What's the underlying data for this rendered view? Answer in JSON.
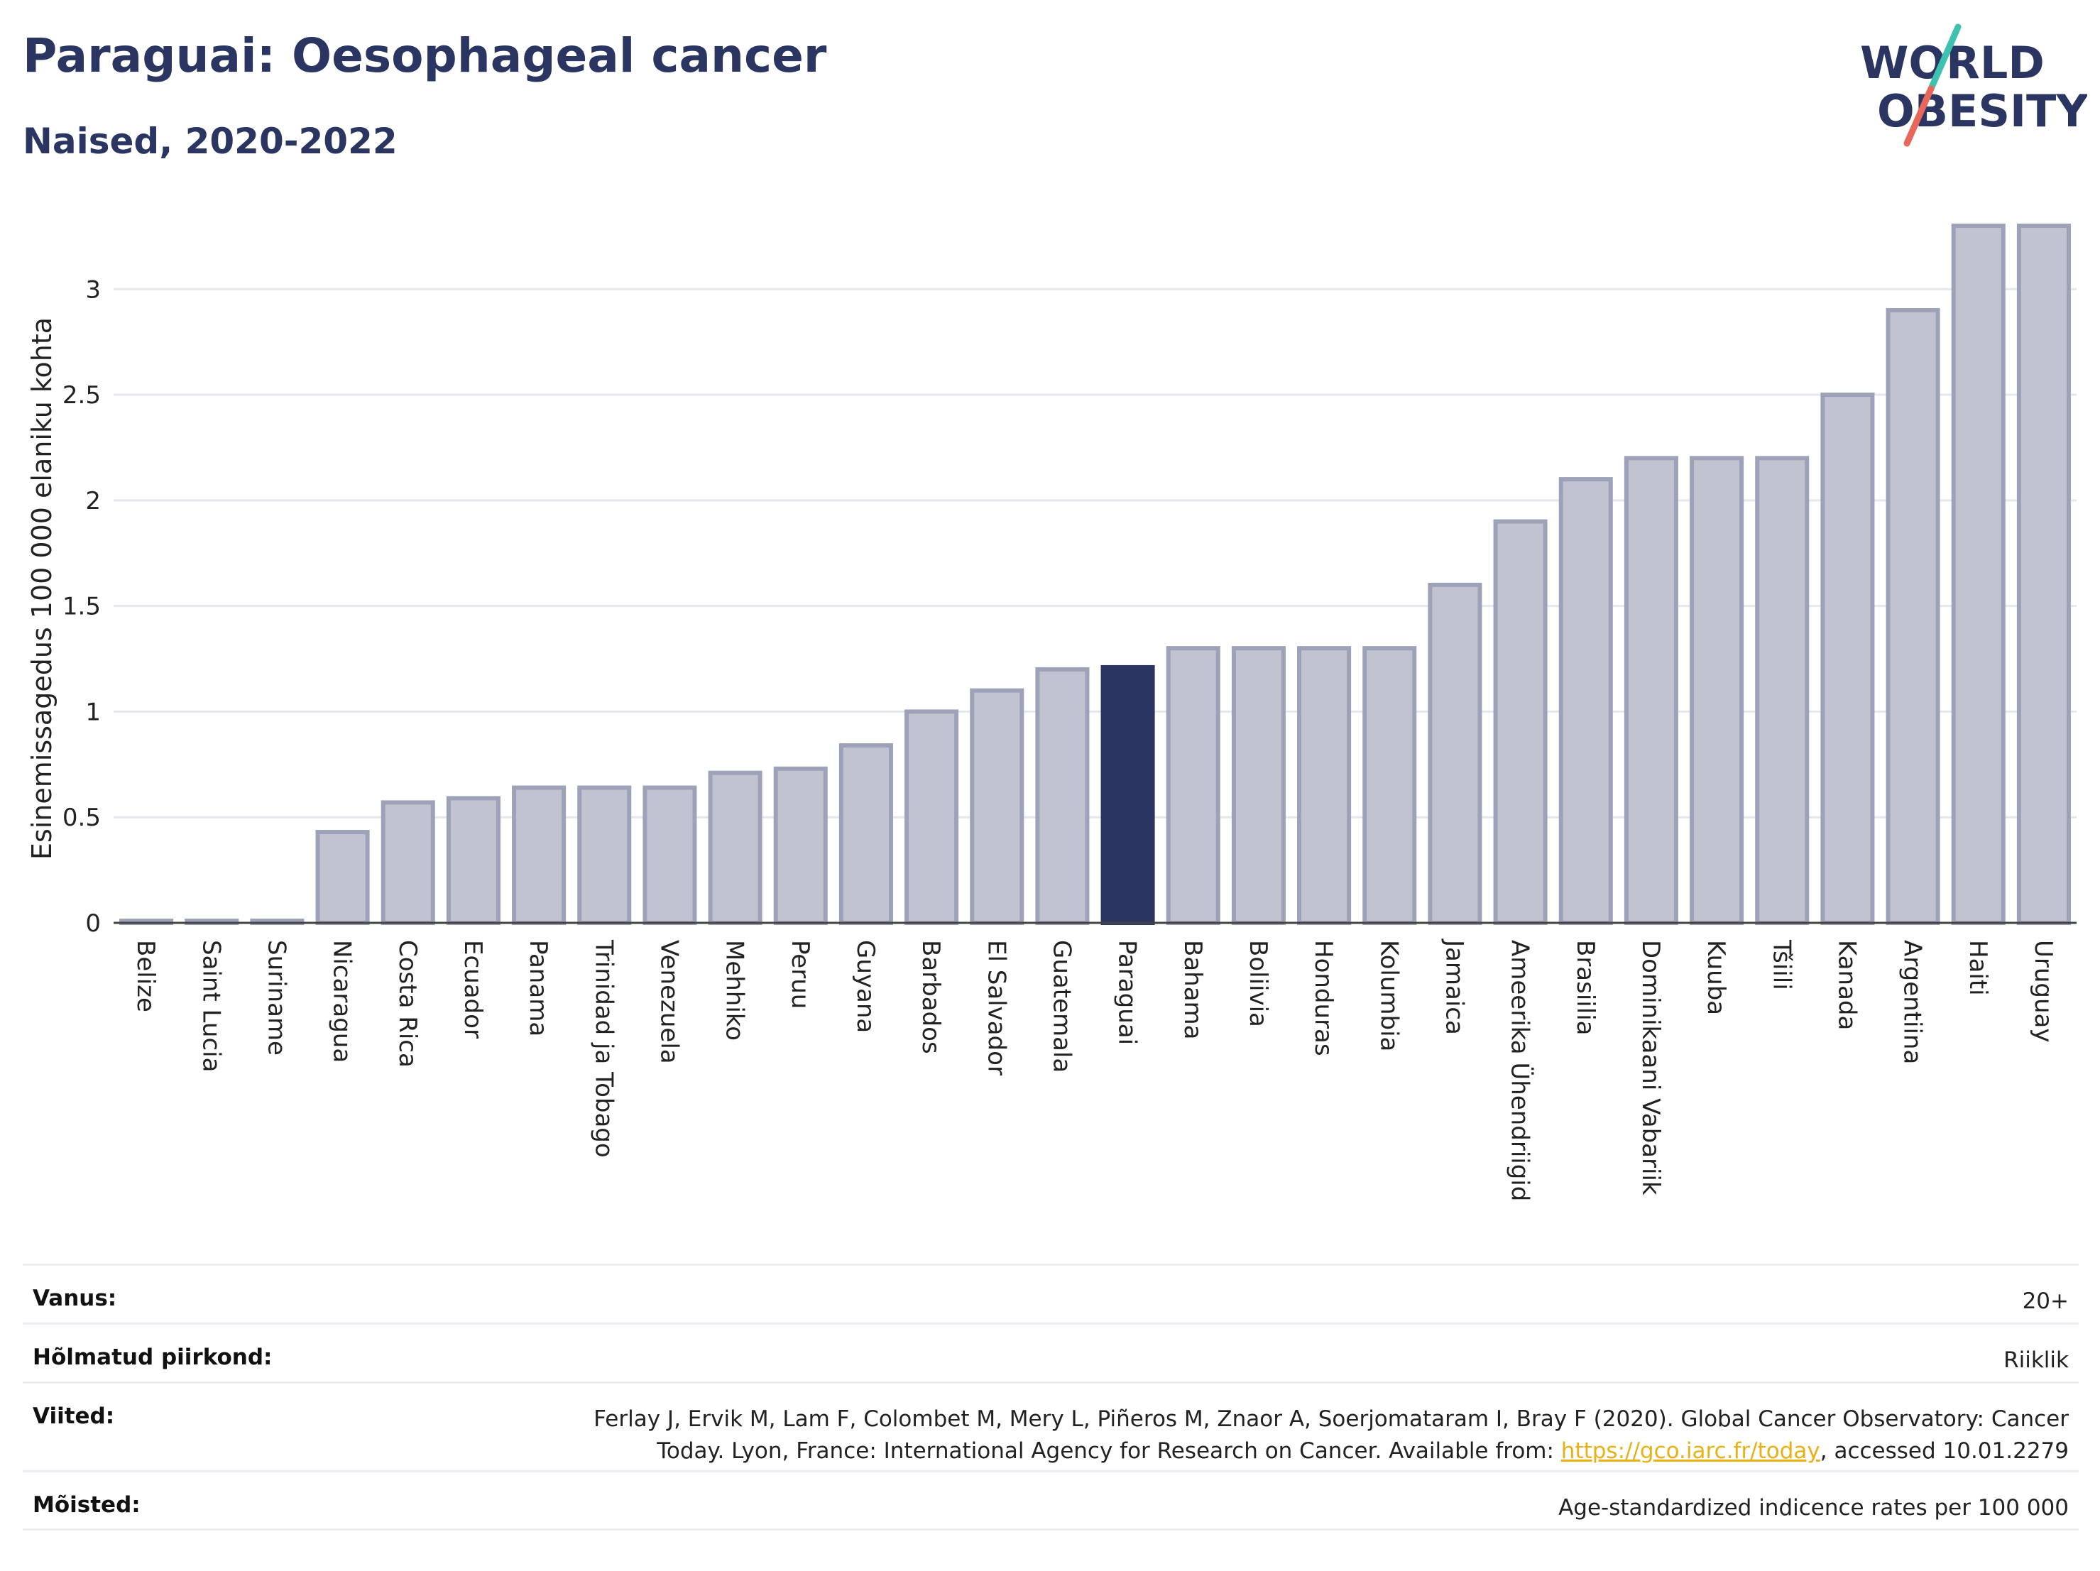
{
  "header": {
    "title": "Paraguai: Oesophageal cancer",
    "subtitle": "Naised, 2020-2022"
  },
  "logo": {
    "line1": "WORLD",
    "line2": "OBESITY",
    "brand_color": "#2b3562",
    "accent_teal": "#3fc1b0",
    "accent_red": "#e8675a"
  },
  "chart_data": {
    "type": "bar",
    "ylabel": "Esinemissagedus 100 000 elaniku kohta",
    "ylim": [
      0,
      3.3
    ],
    "yticks": [
      "0",
      "0.5",
      "1",
      "1.5",
      "2",
      "2.5",
      "3"
    ],
    "ytick_values": [
      0,
      0.5,
      1,
      1.5,
      2,
      2.5,
      3
    ],
    "grid": true,
    "highlight": "Paraguai",
    "colors": {
      "bar": "#c1c4d0",
      "bar_stroke": "#9da2b8",
      "highlight": "#2b3562"
    },
    "categories": [
      "Belize",
      "Saint Lucia",
      "Suriname",
      "Nicaragua",
      "Costa Rica",
      "Ecuador",
      "Panama",
      "Trinidad ja Tobago",
      "Venezuela",
      "Mehhiko",
      "Peruu",
      "Guyana",
      "Barbados",
      "El Salvador",
      "Guatemala",
      "Paraguai",
      "Bahama",
      "Boliivia",
      "Honduras",
      "Kolumbia",
      "Jamaica",
      "Ameerika Ühendriigid",
      "Brasiilia",
      "Dominikaani Vabariik",
      "Kuuba",
      "Tšiili",
      "Kanada",
      "Argentiina",
      "Haiti",
      "Uruguay"
    ],
    "values": [
      0,
      0,
      0,
      0.43,
      0.57,
      0.59,
      0.64,
      0.64,
      0.64,
      0.71,
      0.73,
      0.84,
      1.0,
      1.1,
      1.2,
      1.21,
      1.3,
      1.3,
      1.3,
      1.3,
      1.6,
      1.9,
      2.1,
      2.2,
      2.2,
      2.2,
      2.5,
      2.9,
      3.3,
      3.3
    ]
  },
  "meta": {
    "age_label": "Vanus:",
    "age_value": "20+",
    "region_label": "Hõlmatud piirkond:",
    "region_value": "Riiklik",
    "refs_label": "Viited:",
    "refs_line1": "Ferlay J, Ervik M, Lam F, Colombet M, Mery L, Piñeros M, Znaor A, Soerjomataram I, Bray F (2020). Global Cancer Observatory: Cancer",
    "refs_line2_pre": "Today. Lyon, France: International Agency for Research on Cancer. Available from: ",
    "refs_link": "https://gco.iarc.fr/today",
    "refs_line2_post": ", accessed 10.01.2279",
    "def_label": "Mõisted:",
    "def_value": "Age-standardized indicence rates per 100 000"
  }
}
